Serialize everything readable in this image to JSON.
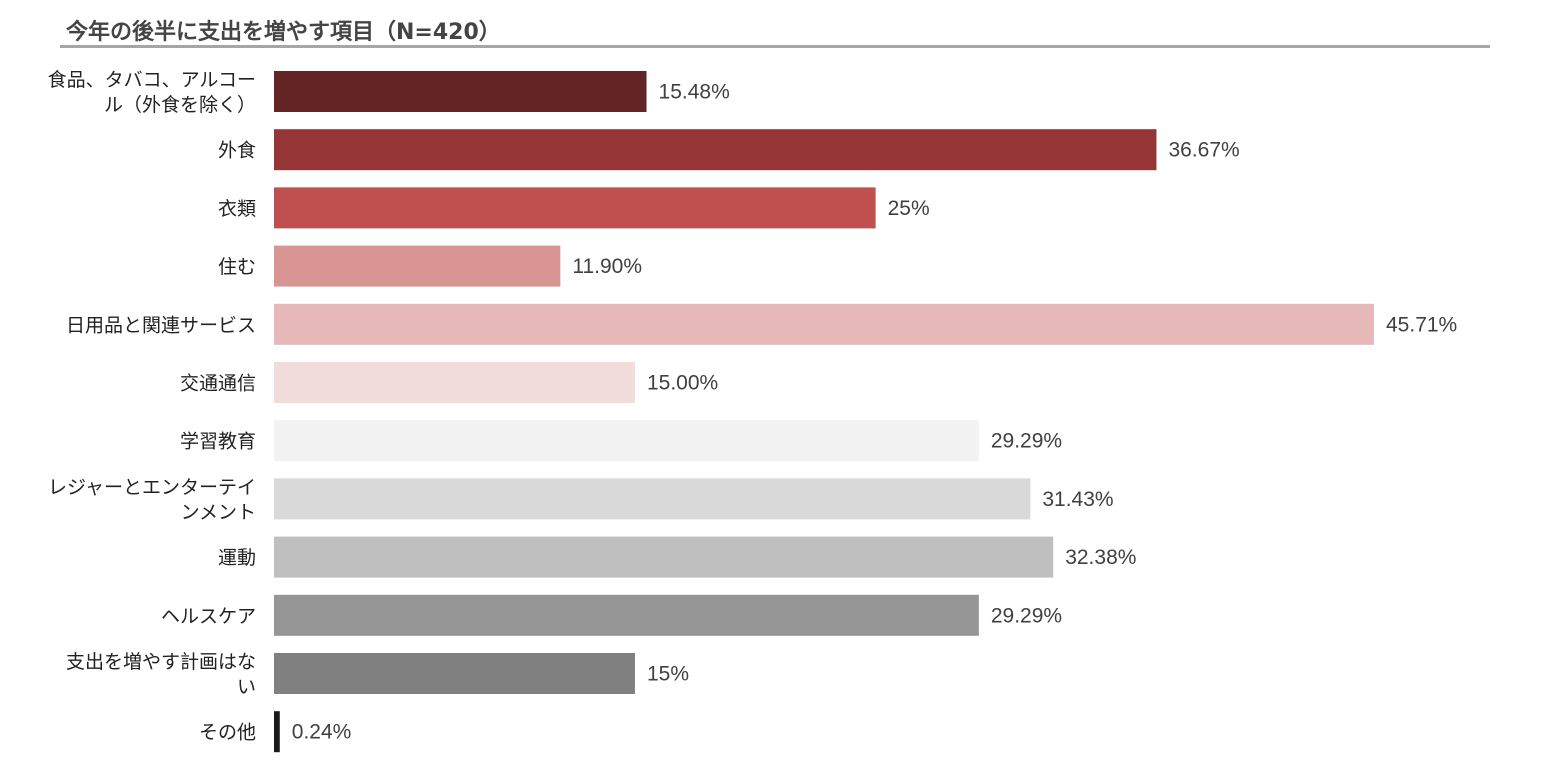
{
  "chart_data": {
    "type": "bar",
    "orientation": "horizontal",
    "title": "今年の後半に支出を増やす項目（N=420）",
    "categories": [
      "食品、タバコ、アルコール（外食を除く）",
      "外食",
      "衣類",
      "住む",
      "日用品と関連サービス",
      "交通通信",
      "学習教育",
      "レジャーとエンターテインメント",
      "運動",
      "ヘルスケア",
      "支出を増やす計画はない",
      "その他"
    ],
    "category_lines": [
      [
        "食品、タバコ、アルコー",
        "ル（外食を除く）"
      ],
      [
        "外食"
      ],
      [
        "衣類"
      ],
      [
        "住む"
      ],
      [
        "日用品と関連サービス"
      ],
      [
        "交通通信"
      ],
      [
        "学習教育"
      ],
      [
        "レジャーとエンターテイ",
        "ンメント"
      ],
      [
        "運動"
      ],
      [
        "ヘルスケア"
      ],
      [
        "支出を増やす計画はな",
        "い"
      ],
      [
        "その他"
      ]
    ],
    "values": [
      15.48,
      36.67,
      25,
      11.9,
      45.71,
      15.0,
      29.29,
      31.43,
      32.38,
      29.29,
      15,
      0.24
    ],
    "value_labels": [
      "15.48%",
      "36.67%",
      "25%",
      "11.90%",
      "45.71%",
      "15.00%",
      "29.29%",
      "31.43%",
      "32.38%",
      "29.29%",
      "15%",
      "0.24%"
    ],
    "colors": [
      "#632425",
      "#963536",
      "#c0504f",
      "#d99594",
      "#e6b8b7",
      "#f2dcdb",
      "#f2f2f2",
      "#d9d9d9",
      "#bfbfbf",
      "#969696",
      "#808080",
      "#1a1a1a"
    ],
    "xlim": [
      0,
      45.71
    ],
    "xlabel": "",
    "ylabel": "",
    "grid": false,
    "legend": "none"
  }
}
